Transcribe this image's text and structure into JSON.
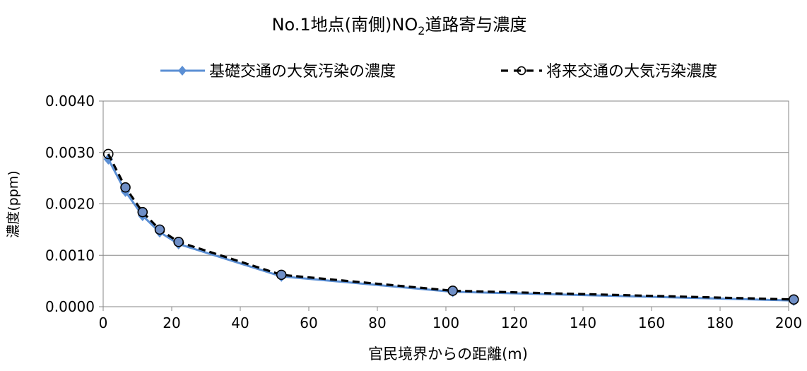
{
  "chart_data": {
    "type": "line",
    "title_main": "No.1地点(南側)NO",
    "title_sub": "2",
    "title_rest": "道路寄与濃度",
    "xlabel": "官民境界からの距離(m)",
    "ylabel": "濃度(ppm)",
    "xlim": [
      0,
      200
    ],
    "ylim": [
      0,
      0.004
    ],
    "xticks": [
      0,
      20,
      40,
      60,
      80,
      100,
      120,
      140,
      160,
      180,
      200
    ],
    "yticks": [
      "0.0000",
      "0.0010",
      "0.0020",
      "0.0030",
      "0.0040"
    ],
    "ytick_values": [
      0,
      0.001,
      0.002,
      0.003,
      0.004
    ],
    "grid": "horizontal",
    "legend_position": "top",
    "series": [
      {
        "name": "基礎交通の大気汚染の濃度",
        "color": "#5b8fd4",
        "marker": "diamond",
        "line_style": "solid",
        "x": [
          1.5,
          6.5,
          11.5,
          16.5,
          22,
          52,
          102,
          201.5
        ],
        "y": [
          0.00287,
          0.00224,
          0.00177,
          0.00145,
          0.00122,
          0.00059,
          0.00029,
          0.00012
        ]
      },
      {
        "name": "将来交通の大気汚染濃度",
        "color": "#000000",
        "marker": "circle",
        "line_style": "dashed",
        "x": [
          1.5,
          6.5,
          11.5,
          16.5,
          22,
          52,
          102,
          201.5
        ],
        "y": [
          0.00297,
          0.00232,
          0.00184,
          0.0015,
          0.00126,
          0.00062,
          0.00031,
          0.00014
        ]
      }
    ]
  }
}
